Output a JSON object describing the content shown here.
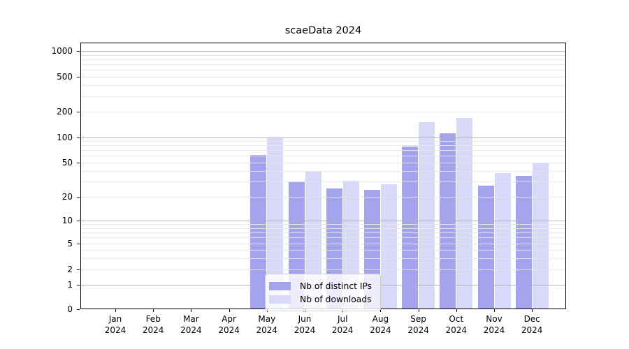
{
  "title": "scaeData 2024",
  "chart_data": {
    "type": "bar",
    "title": "scaeData 2024",
    "categories": [
      "Jan 2024",
      "Feb 2024",
      "Mar 2024",
      "Apr 2024",
      "May 2024",
      "Jun 2024",
      "Jul 2024",
      "Aug 2024",
      "Sep 2024",
      "Oct 2024",
      "Nov 2024",
      "Dec 2024"
    ],
    "series": [
      {
        "name": "Nb of distinct IPs",
        "color": "#a3a3ee",
        "values": [
          0,
          0,
          0,
          0,
          62,
          30,
          25,
          24,
          78,
          110,
          27,
          35
        ]
      },
      {
        "name": "Nb of downloads",
        "color": "#d8d9f8",
        "values": [
          0,
          0,
          0,
          0,
          100,
          40,
          31,
          28,
          150,
          170,
          38,
          50
        ]
      }
    ],
    "yscale": "symlog",
    "y_tick_labels": [
      0,
      1,
      2,
      5,
      10,
      20,
      50,
      100,
      200,
      500,
      1000
    ],
    "ylim": [
      0,
      1250
    ],
    "xlabel": "",
    "ylabel": "",
    "grid": true,
    "legend_position": "lower center"
  },
  "colors": {
    "major_grid": "rgba(176,176,176,0.95)",
    "minor_grid": "rgba(230,230,230,0.9)",
    "axis": "#000000",
    "background": "#ffffff"
  }
}
